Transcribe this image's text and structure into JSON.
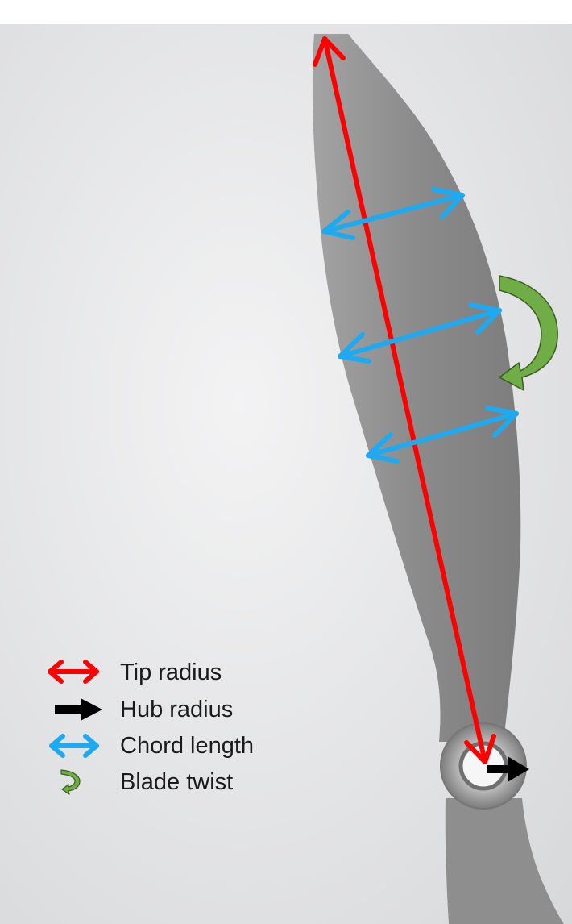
{
  "colors": {
    "tip_radius": "#ff0000",
    "hub_radius": "#000000",
    "chord_length": "#1eaaf1",
    "blade_twist": "#70ad47",
    "blade_twist_outline": "#3a5e1e",
    "blade": "#8f8f8f",
    "background": "#e4e5e7"
  },
  "legend": [
    {
      "key": "tip_radius",
      "label": "Tip radius",
      "icon": "double-arrow-icon"
    },
    {
      "key": "hub_radius",
      "label": "Hub radius",
      "icon": "right-arrow-icon"
    },
    {
      "key": "chord_length",
      "label": "Chord length",
      "icon": "double-arrow-icon"
    },
    {
      "key": "blade_twist",
      "label": "Blade twist",
      "icon": "curved-arrow-icon"
    }
  ]
}
